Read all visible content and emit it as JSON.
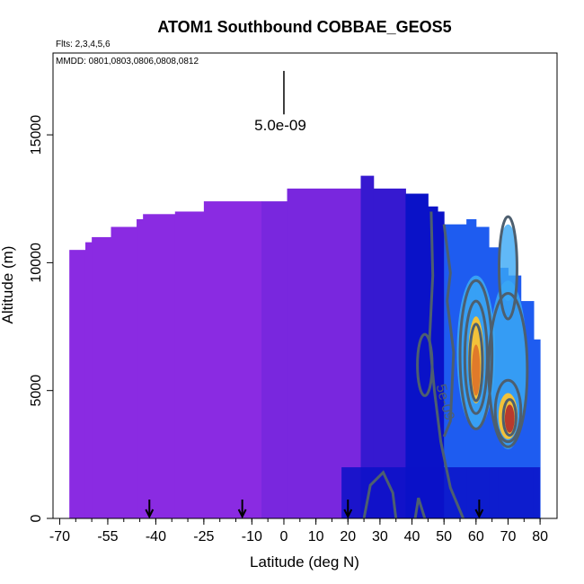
{
  "chart_data": {
    "type": "heatmap",
    "title": "ATOM1 Southbound COBBAE_GEOS5",
    "flights_note": "Flts: 2,3,4,5,6",
    "dates_note": "MMDD: 0801,0803,0806,0808,0812",
    "xlabel": "Latitude (deg N)",
    "ylabel": "Altitude (m)",
    "xlim": [
      -70,
      80
    ],
    "ylim": [
      0,
      17500
    ],
    "xticks": [
      -70,
      -55,
      -40,
      -25,
      -10,
      0,
      10,
      20,
      30,
      40,
      50,
      60,
      70,
      80
    ],
    "yticks": [
      0,
      5000,
      10000,
      15000
    ],
    "scale_label": "5.0e-09",
    "contour_label": "5e-09",
    "profile_arrows_lat": [
      -42,
      -13,
      20,
      61
    ],
    "colors": {
      "background_low": "#8a2be2",
      "mid_low": "#5a1fd6",
      "dark_blue": "#0a12c8",
      "blue": "#1e5cf0",
      "light_blue": "#3aa7f5",
      "yellow": "#f2c23a",
      "orange": "#e07a2a",
      "red": "#b83a2c",
      "contour": "#4d5f6f"
    },
    "columns": [
      {
        "lat": [
          -67,
          -62
        ],
        "top": 10500
      },
      {
        "lat": [
          -62,
          -60
        ],
        "top": 10800
      },
      {
        "lat": [
          -60,
          -54
        ],
        "top": 11000
      },
      {
        "lat": [
          -54,
          -46
        ],
        "top": 11400
      },
      {
        "lat": [
          -46,
          -44
        ],
        "top": 11700
      },
      {
        "lat": [
          -44,
          -34
        ],
        "top": 11900
      },
      {
        "lat": [
          -34,
          -25
        ],
        "top": 12000
      },
      {
        "lat": [
          -25,
          -7
        ],
        "top": 12400
      },
      {
        "lat": [
          -7,
          1
        ],
        "top": 12400
      },
      {
        "lat": [
          1,
          24
        ],
        "top": 12900
      },
      {
        "lat": [
          24,
          28
        ],
        "top": 13400
      },
      {
        "lat": [
          28,
          38
        ],
        "top": 12900
      },
      {
        "lat": [
          38,
          45
        ],
        "top": 12700
      },
      {
        "lat": [
          45,
          48
        ],
        "top": 12200
      },
      {
        "lat": [
          48,
          50
        ],
        "top": 12000
      },
      {
        "lat": [
          50,
          57
        ],
        "top": 11500
      },
      {
        "lat": [
          57,
          60
        ],
        "top": 11700
      },
      {
        "lat": [
          60,
          64
        ],
        "top": 11400
      },
      {
        "lat": [
          64,
          67
        ],
        "top": 10600
      },
      {
        "lat": [
          67,
          70
        ],
        "top": 9800
      },
      {
        "lat": [
          70,
          74
        ],
        "top": 9500
      },
      {
        "lat": [
          74,
          78
        ],
        "top": 8500
      },
      {
        "lat": [
          78,
          80
        ],
        "top": 7000
      }
    ]
  }
}
